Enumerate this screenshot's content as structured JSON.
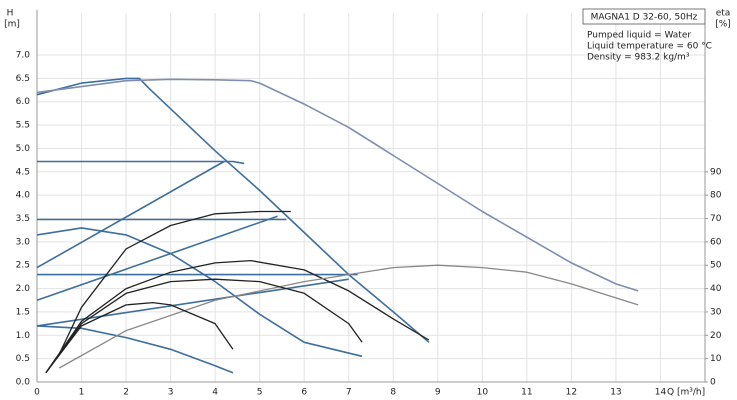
{
  "chart_data": {
    "type": "line",
    "title": "MAGNA1 D 32-60, 50Hz",
    "annotations": [
      "Pumped liquid = Water",
      "Liquid temperature = 60 °C",
      "Density = 983.2 kg/m³"
    ],
    "ylabel": [
      "H",
      "[m]"
    ],
    "y2label": [
      "eta",
      "[%]"
    ],
    "xlabel": "Q [m³/h]",
    "grid": true,
    "xlim": [
      0,
      15
    ],
    "xticks": [
      0,
      1,
      2,
      3,
      4,
      5,
      6,
      7,
      8,
      9,
      10,
      11,
      12,
      13,
      14
    ],
    "ylim": [
      0,
      7.9
    ],
    "yticks": [
      {
        "value": 0,
        "label": "0.0"
      },
      0.5,
      {
        "value": 1,
        "label": "1.0"
      },
      1.5,
      {
        "value": 2,
        "label": "2.0"
      },
      2.5,
      {
        "value": 3,
        "label": "3.0"
      },
      3.5,
      {
        "value": 4,
        "label": "4.0"
      },
      4.5,
      {
        "value": 5,
        "label": "5.0"
      },
      5.5,
      {
        "value": 6,
        "label": "6.0"
      },
      6.5,
      {
        "value": 7,
        "label": "7.0"
      }
    ],
    "y2lim": [
      0,
      158
    ],
    "y2ticks": [
      0,
      10,
      20,
      30,
      40,
      50,
      60,
      70,
      80,
      90
    ],
    "series": [
      {
        "color": "#3d6f9e",
        "x": [
          0,
          1,
          2,
          2.3,
          2.5,
          3,
          4,
          5,
          6,
          7,
          8,
          8.8
        ],
        "values": [
          6.15,
          6.4,
          6.5,
          6.5,
          6.3,
          5.85,
          4.95,
          4.1,
          3.2,
          2.3,
          1.5,
          0.85
        ]
      },
      {
        "color": "#7f8db0",
        "x": [
          0,
          2,
          3,
          4,
          4.8,
          5,
          6,
          7,
          8,
          9,
          10,
          11,
          12,
          13,
          13.5
        ],
        "values": [
          6.2,
          6.45,
          6.48,
          6.47,
          6.45,
          6.4,
          5.95,
          5.45,
          4.85,
          4.25,
          3.65,
          3.1,
          2.55,
          2.1,
          1.95
        ]
      },
      {
        "color": "#3d6f9e",
        "x": [
          0,
          4.4,
          4.65
        ],
        "values": [
          4.72,
          4.72,
          4.68
        ]
      },
      {
        "color": "#3d6f9e",
        "x": [
          0,
          4.2
        ],
        "values": [
          2.45,
          4.72
        ]
      },
      {
        "color": "#3d6f9e",
        "x": [
          0,
          5.6
        ],
        "values": [
          3.48,
          3.48
        ]
      },
      {
        "color": "#3d6f9e",
        "x": [
          0,
          5.4
        ],
        "values": [
          1.75,
          3.55
        ]
      },
      {
        "color": "#3d6f9e",
        "x": [
          0,
          7.2
        ],
        "values": [
          2.3,
          2.3
        ]
      },
      {
        "color": "#3d6f9e",
        "x": [
          0,
          7
        ],
        "values": [
          1.2,
          2.2
        ]
      },
      {
        "color": "#3d6f9e",
        "x": [
          0,
          1,
          2,
          3,
          4,
          5,
          6,
          7.3
        ],
        "values": [
          3.15,
          3.3,
          3.15,
          2.75,
          2.15,
          1.45,
          0.85,
          0.55
        ]
      },
      {
        "color": "#3d6f9e",
        "x": [
          0,
          1,
          2,
          3,
          4,
          4.4
        ],
        "values": [
          1.2,
          1.15,
          0.95,
          0.7,
          0.35,
          0.2
        ]
      },
      {
        "color": "#222222",
        "axis": "y2",
        "x": [
          0.2,
          1,
          2,
          3,
          4,
          4.8,
          6,
          7,
          8,
          8.8
        ],
        "values": [
          4,
          26,
          40,
          47,
          51,
          52,
          48,
          39,
          27,
          18
        ]
      },
      {
        "color": "#888888",
        "axis": "y2",
        "x": [
          0.5,
          2,
          4,
          6,
          8,
          9,
          10,
          11,
          12,
          13,
          13.5
        ],
        "values": [
          6,
          22,
          35,
          43,
          49,
          50,
          49,
          47,
          42,
          36,
          33
        ]
      },
      {
        "color": "#222222",
        "axis": "y2",
        "x": [
          0.2,
          1,
          2,
          2.6,
          3,
          4,
          4.4
        ],
        "values": [
          4,
          24,
          33,
          34,
          33,
          25,
          14
        ]
      },
      {
        "color": "#222222",
        "axis": "y2",
        "x": [
          0.5,
          1,
          2,
          3,
          4,
          5,
          5.7
        ],
        "values": [
          12,
          32,
          57,
          67,
          72,
          73,
          73
        ]
      },
      {
        "color": "#222222",
        "axis": "y2",
        "x": [
          0.2,
          1,
          2,
          3,
          4,
          5,
          6,
          7,
          7.3
        ],
        "values": [
          4,
          25,
          38,
          43,
          44,
          43,
          38,
          25,
          17
        ]
      }
    ]
  }
}
